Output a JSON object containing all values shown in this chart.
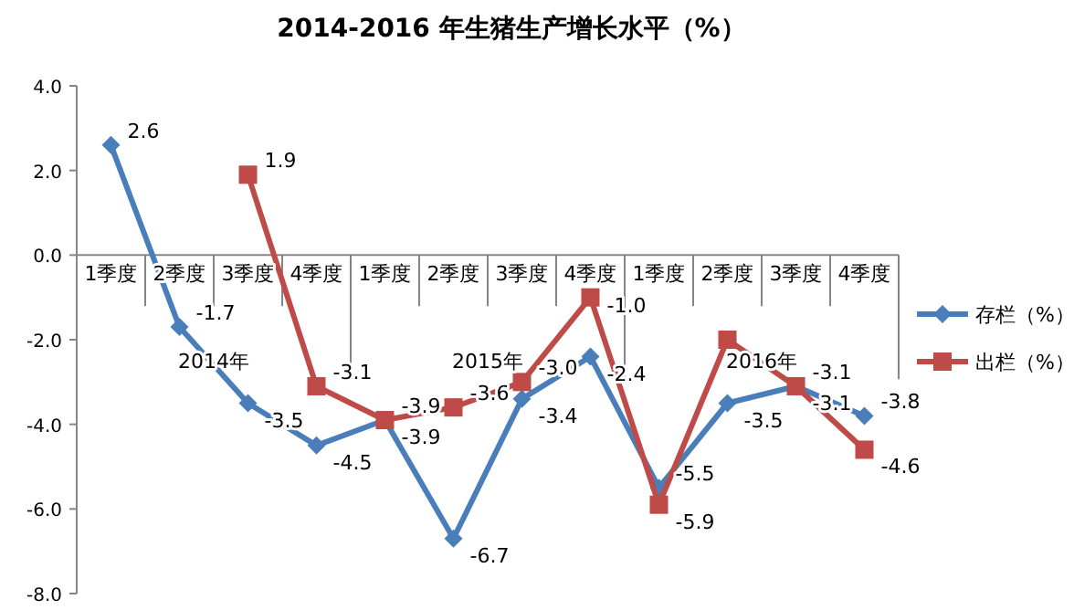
{
  "chart_data": {
    "type": "line",
    "title": "2014-2016 年生猪生产增长水平（%）",
    "categories": [
      "1季度",
      "2季度",
      "3季度",
      "4季度",
      "1季度",
      "2季度",
      "3季度",
      "4季度",
      "1季度",
      "2季度",
      "3季度",
      "4季度"
    ],
    "annotations": [
      "2014年",
      "2015年",
      "2016年"
    ],
    "series": [
      {
        "name": "存栏（%）",
        "color": "#4a7ebb",
        "values": [
          2.6,
          -1.7,
          -3.5,
          -4.5,
          -3.9,
          -6.7,
          -3.4,
          -2.4,
          -5.5,
          -3.5,
          -3.1,
          -3.8
        ],
        "value_labels": [
          "2.6",
          "-1.7",
          "-3.5",
          "-4.5",
          "-3.9",
          "-6.7",
          "-3.4",
          "-2.4",
          "-5.5",
          "-3.5",
          "-3.1",
          "-3.8"
        ],
        "marker": "diamond"
      },
      {
        "name": "出栏（%）",
        "color": "#be4b48",
        "values": [
          null,
          null,
          1.9,
          -3.1,
          -3.9,
          -3.6,
          -3.0,
          -1.0,
          -5.9,
          -2.0,
          -3.1,
          -4.6
        ],
        "value_labels": [
          null,
          null,
          "1.9",
          "-3.1",
          "-3.9",
          "-3.6",
          "-3.0",
          "-1.0",
          "-5.9",
          null,
          "-3.1",
          "-4.6"
        ],
        "marker": "square"
      }
    ],
    "ylim": [
      -8,
      4
    ],
    "yticks": [
      {
        "value": 4,
        "label": "4.0"
      },
      {
        "value": 2,
        "label": "2.0"
      },
      {
        "value": 0,
        "label": "0.0"
      },
      {
        "value": -2,
        "label": "-2.0"
      },
      {
        "value": -4,
        "label": "-4.0"
      },
      {
        "value": -6,
        "label": "-6.0"
      },
      {
        "value": -8,
        "label": "-8.0"
      }
    ],
    "grid": false,
    "legend": "right"
  }
}
